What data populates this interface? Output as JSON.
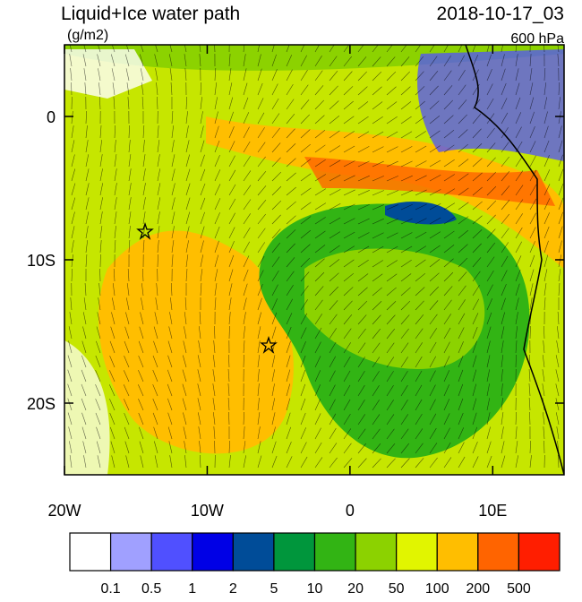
{
  "title": "Liquid+Ice water path",
  "units": "(g/m2)",
  "datetime": "2018-10-17_03",
  "level": "600 hPa",
  "map": {
    "lonlim": [
      -20,
      15
    ],
    "latlim": [
      -25,
      5
    ],
    "lon_ticks": [
      {
        "value": -20,
        "label": "20W"
      },
      {
        "value": -10,
        "label": "10W"
      },
      {
        "value": 0,
        "label": "0"
      },
      {
        "value": 10,
        "label": "10E"
      }
    ],
    "lat_ticks": [
      {
        "value": 0,
        "label": "0"
      },
      {
        "value": -10,
        "label": "10S"
      },
      {
        "value": -20,
        "label": "20S"
      }
    ]
  },
  "colorbar": {
    "levels": [
      "0.1",
      "0.5",
      "1",
      "2",
      "5",
      "10",
      "20",
      "50",
      "100",
      "200",
      "500"
    ],
    "colors": [
      "#ffffff",
      "#a0a0ff",
      "#5050ff",
      "#0000e6",
      "#004c98",
      "#00963c",
      "#32b414",
      "#8cd200",
      "#e1f500",
      "#ffbe00",
      "#ff6400",
      "#ff1e00"
    ]
  }
}
